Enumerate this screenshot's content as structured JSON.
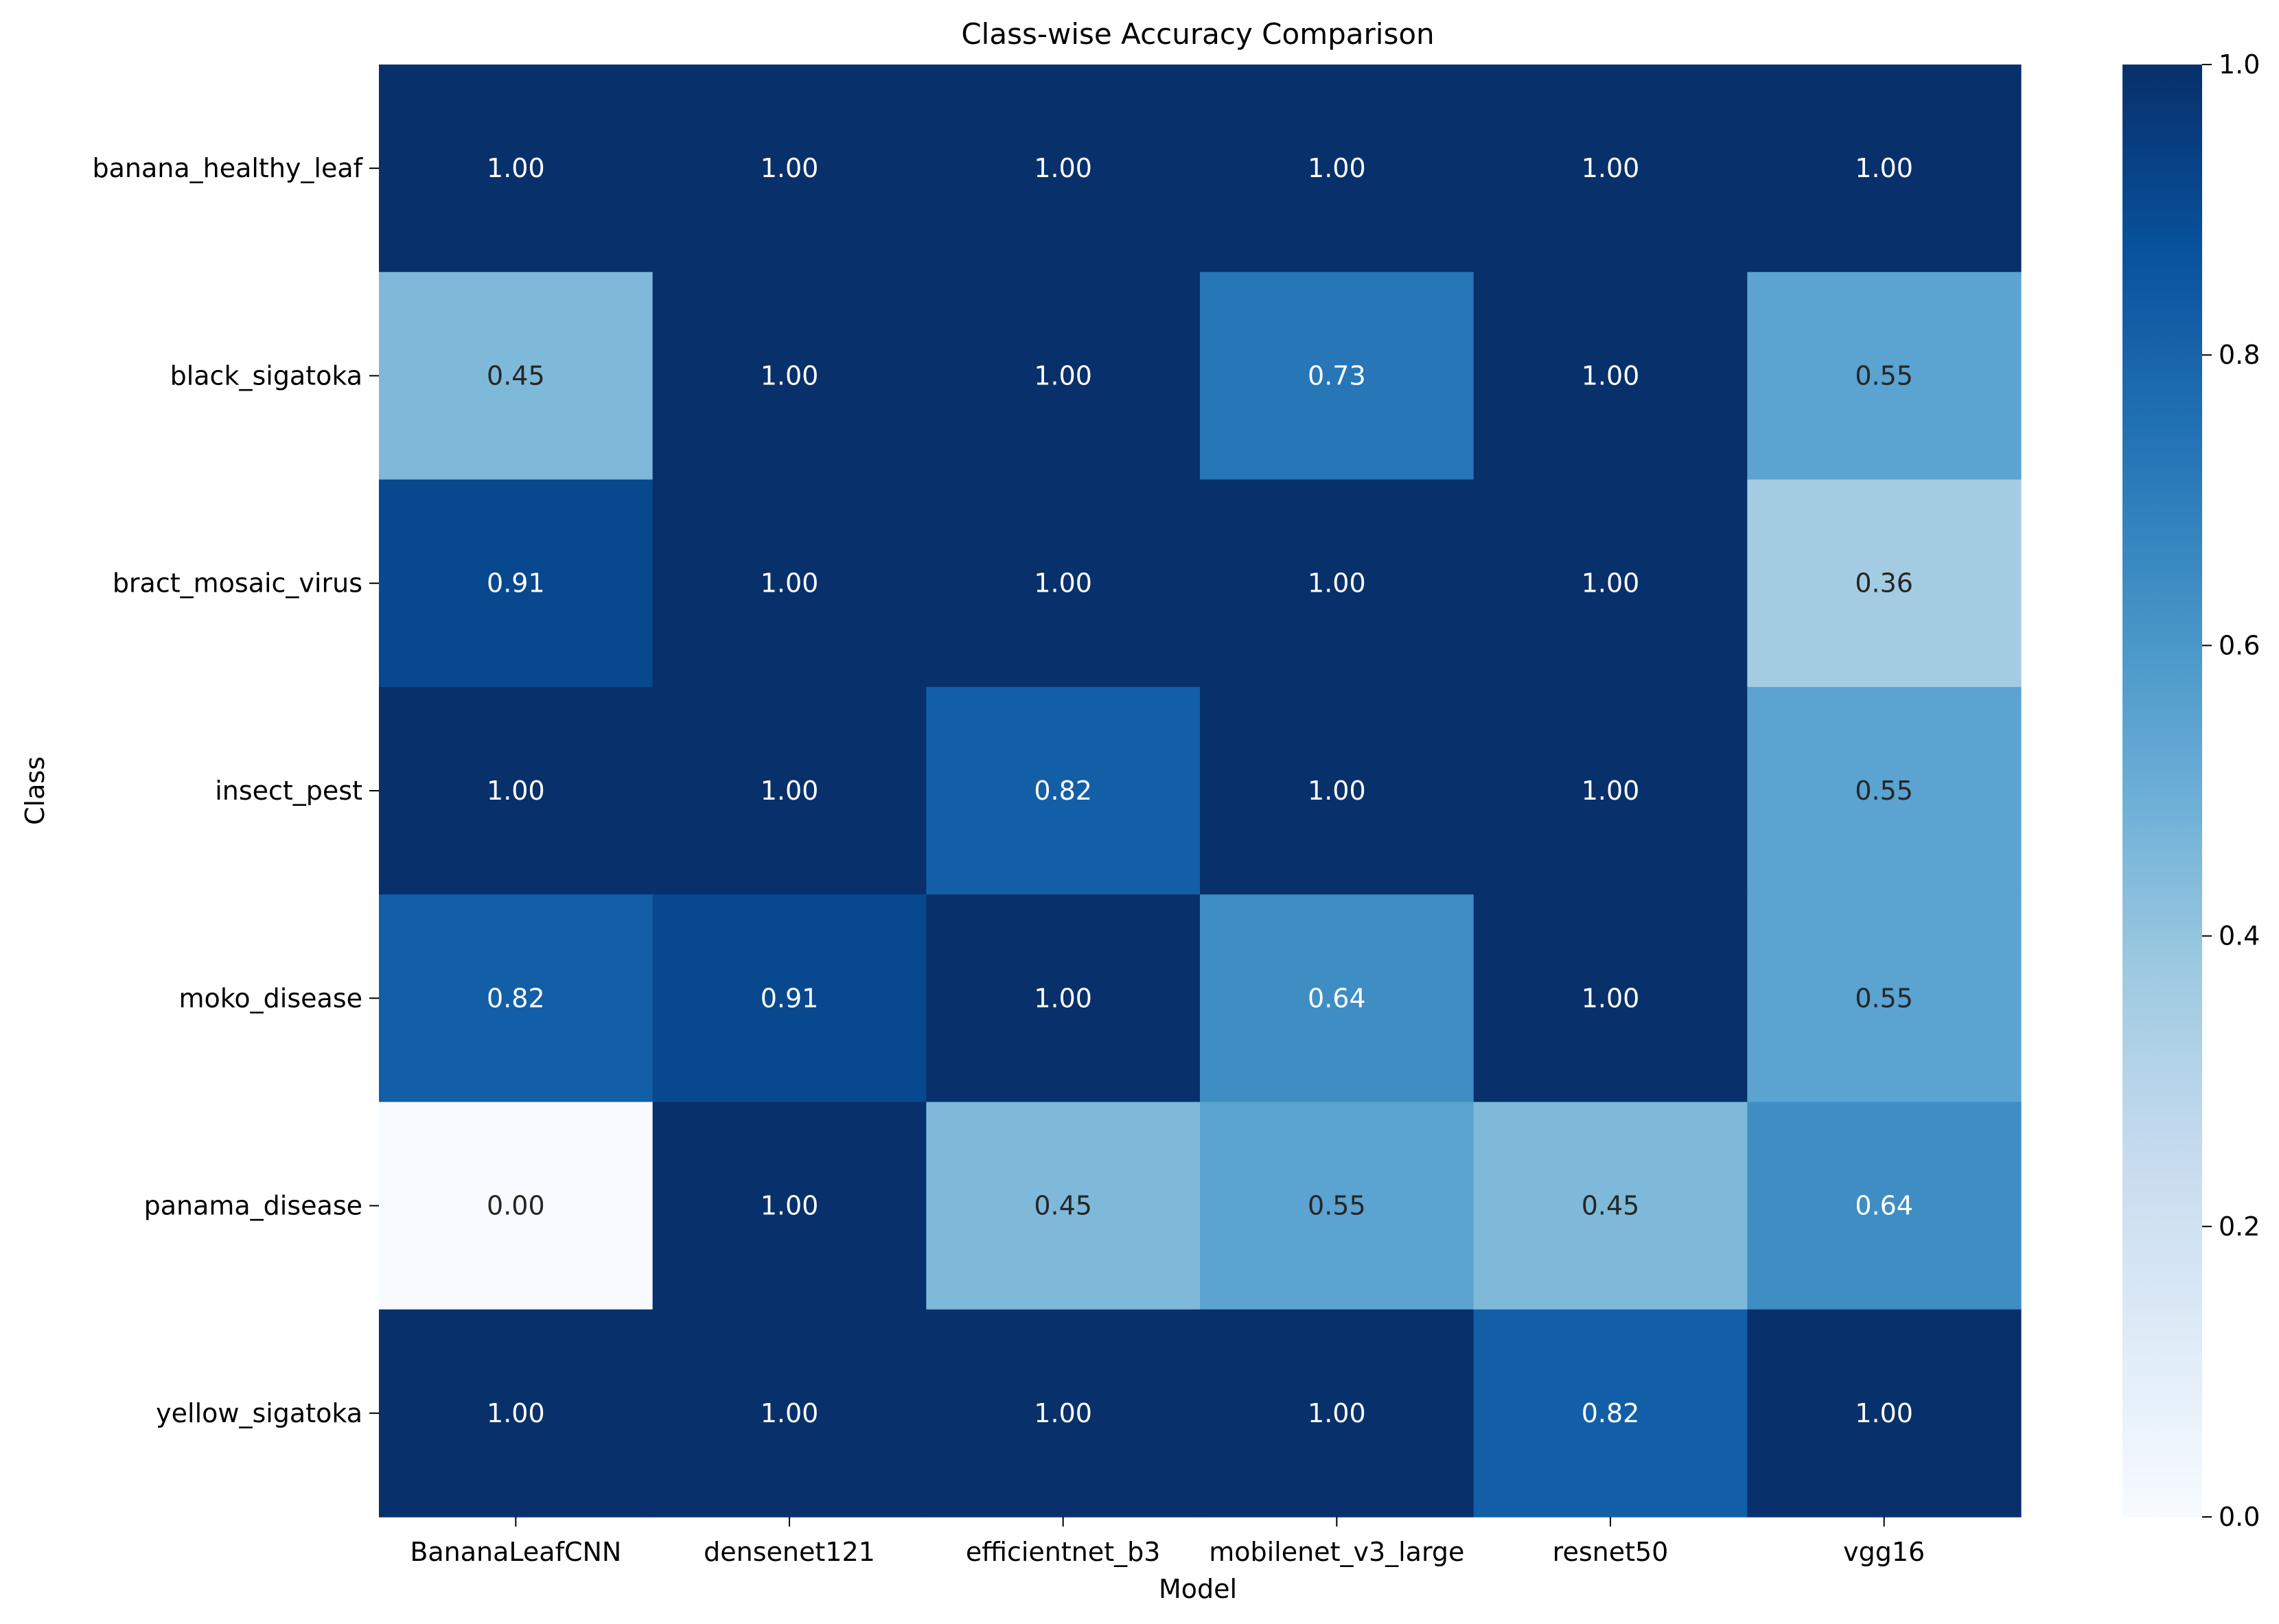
{
  "chart_data": {
    "type": "heatmap",
    "title": "Class-wise Accuracy Comparison",
    "xlabel": "Model",
    "ylabel": "Class",
    "x_categories": [
      "BananaLeafCNN",
      "densenet121",
      "efficientnet_b3",
      "mobilenet_v3_large",
      "resnet50",
      "vgg16"
    ],
    "y_categories": [
      "banana_healthy_leaf",
      "black_sigatoka",
      "bract_mosaic_virus",
      "insect_pest",
      "moko_disease",
      "panama_disease",
      "yellow_sigatoka"
    ],
    "values": [
      [
        1.0,
        1.0,
        1.0,
        1.0,
        1.0,
        1.0
      ],
      [
        0.45,
        1.0,
        1.0,
        0.73,
        1.0,
        0.55
      ],
      [
        0.91,
        1.0,
        1.0,
        1.0,
        1.0,
        0.36
      ],
      [
        1.0,
        1.0,
        0.82,
        1.0,
        1.0,
        0.55
      ],
      [
        0.82,
        0.91,
        1.0,
        0.64,
        1.0,
        0.55
      ],
      [
        0.0,
        1.0,
        0.45,
        0.55,
        0.45,
        0.64
      ],
      [
        1.0,
        1.0,
        1.0,
        1.0,
        0.82,
        1.0
      ]
    ],
    "value_format": "0.00",
    "colormap": "Blues",
    "colorbar": {
      "range": [
        0.0,
        1.0
      ],
      "ticks": [
        "0.0",
        "0.2",
        "0.4",
        "0.6",
        "0.8",
        "1.0"
      ]
    },
    "grid": false,
    "legend": "colorbar-right"
  }
}
